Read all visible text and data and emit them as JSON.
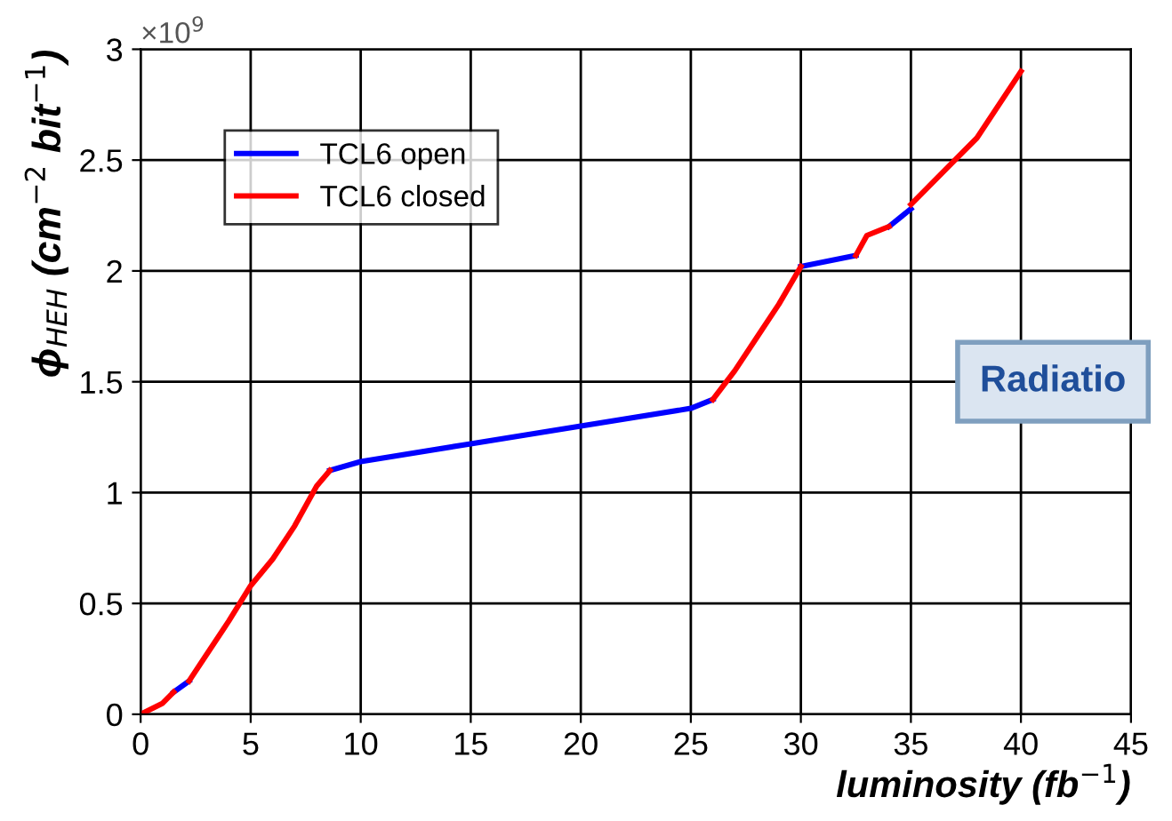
{
  "chart_data": {
    "type": "line",
    "xlabel": "luminosity (fb$^{−1}$)",
    "ylabel": "ϕ$_{HEH}$ (cm$^{−2}$ bit$^{−1}$)",
    "xlim": [
      0,
      45
    ],
    "xticks": [
      0,
      5,
      10,
      15,
      20,
      25,
      30,
      35,
      40,
      45
    ],
    "ylim": [
      0,
      3
    ],
    "yticks": [
      0,
      0.5,
      1,
      1.5,
      2,
      2.5,
      3
    ],
    "grid": true,
    "legend": "top left",
    "line_style": "solid",
    "annotations": [
      "×10$^{9}$",
      "Radiatio"
    ],
    "series": [
      {
        "name": "TCL6 open",
        "color": "#0000ff",
        "x": [
          1.5,
          2.2,
          2.3,
          8.6,
          10,
          15,
          20,
          25,
          26,
          26.1,
          30,
          32,
          32.5,
          32.6,
          34,
          35
        ],
        "values": [
          0.1,
          0.15,
          null,
          1.1,
          1.14,
          1.22,
          1.3,
          1.38,
          1.42,
          null,
          2.02,
          2.06,
          2.07,
          null,
          2.2,
          2.28
        ]
      },
      {
        "name": "TCL6 closed",
        "color": "#ff0000",
        "x": [
          0,
          1,
          1.5,
          1.6,
          2.2,
          3,
          4,
          5,
          6,
          7,
          8,
          8.6,
          8.7,
          26,
          27,
          28,
          29,
          30,
          30.1,
          32.5,
          33,
          34,
          34.1,
          35,
          37,
          38,
          40
        ],
        "values": [
          0.0,
          0.05,
          0.1,
          null,
          0.15,
          0.27,
          0.42,
          0.58,
          0.7,
          0.85,
          1.03,
          1.1,
          null,
          1.42,
          1.55,
          1.7,
          1.85,
          2.02,
          null,
          2.07,
          2.16,
          2.2,
          null,
          2.3,
          2.5,
          2.6,
          2.9
        ]
      }
    ]
  }
}
